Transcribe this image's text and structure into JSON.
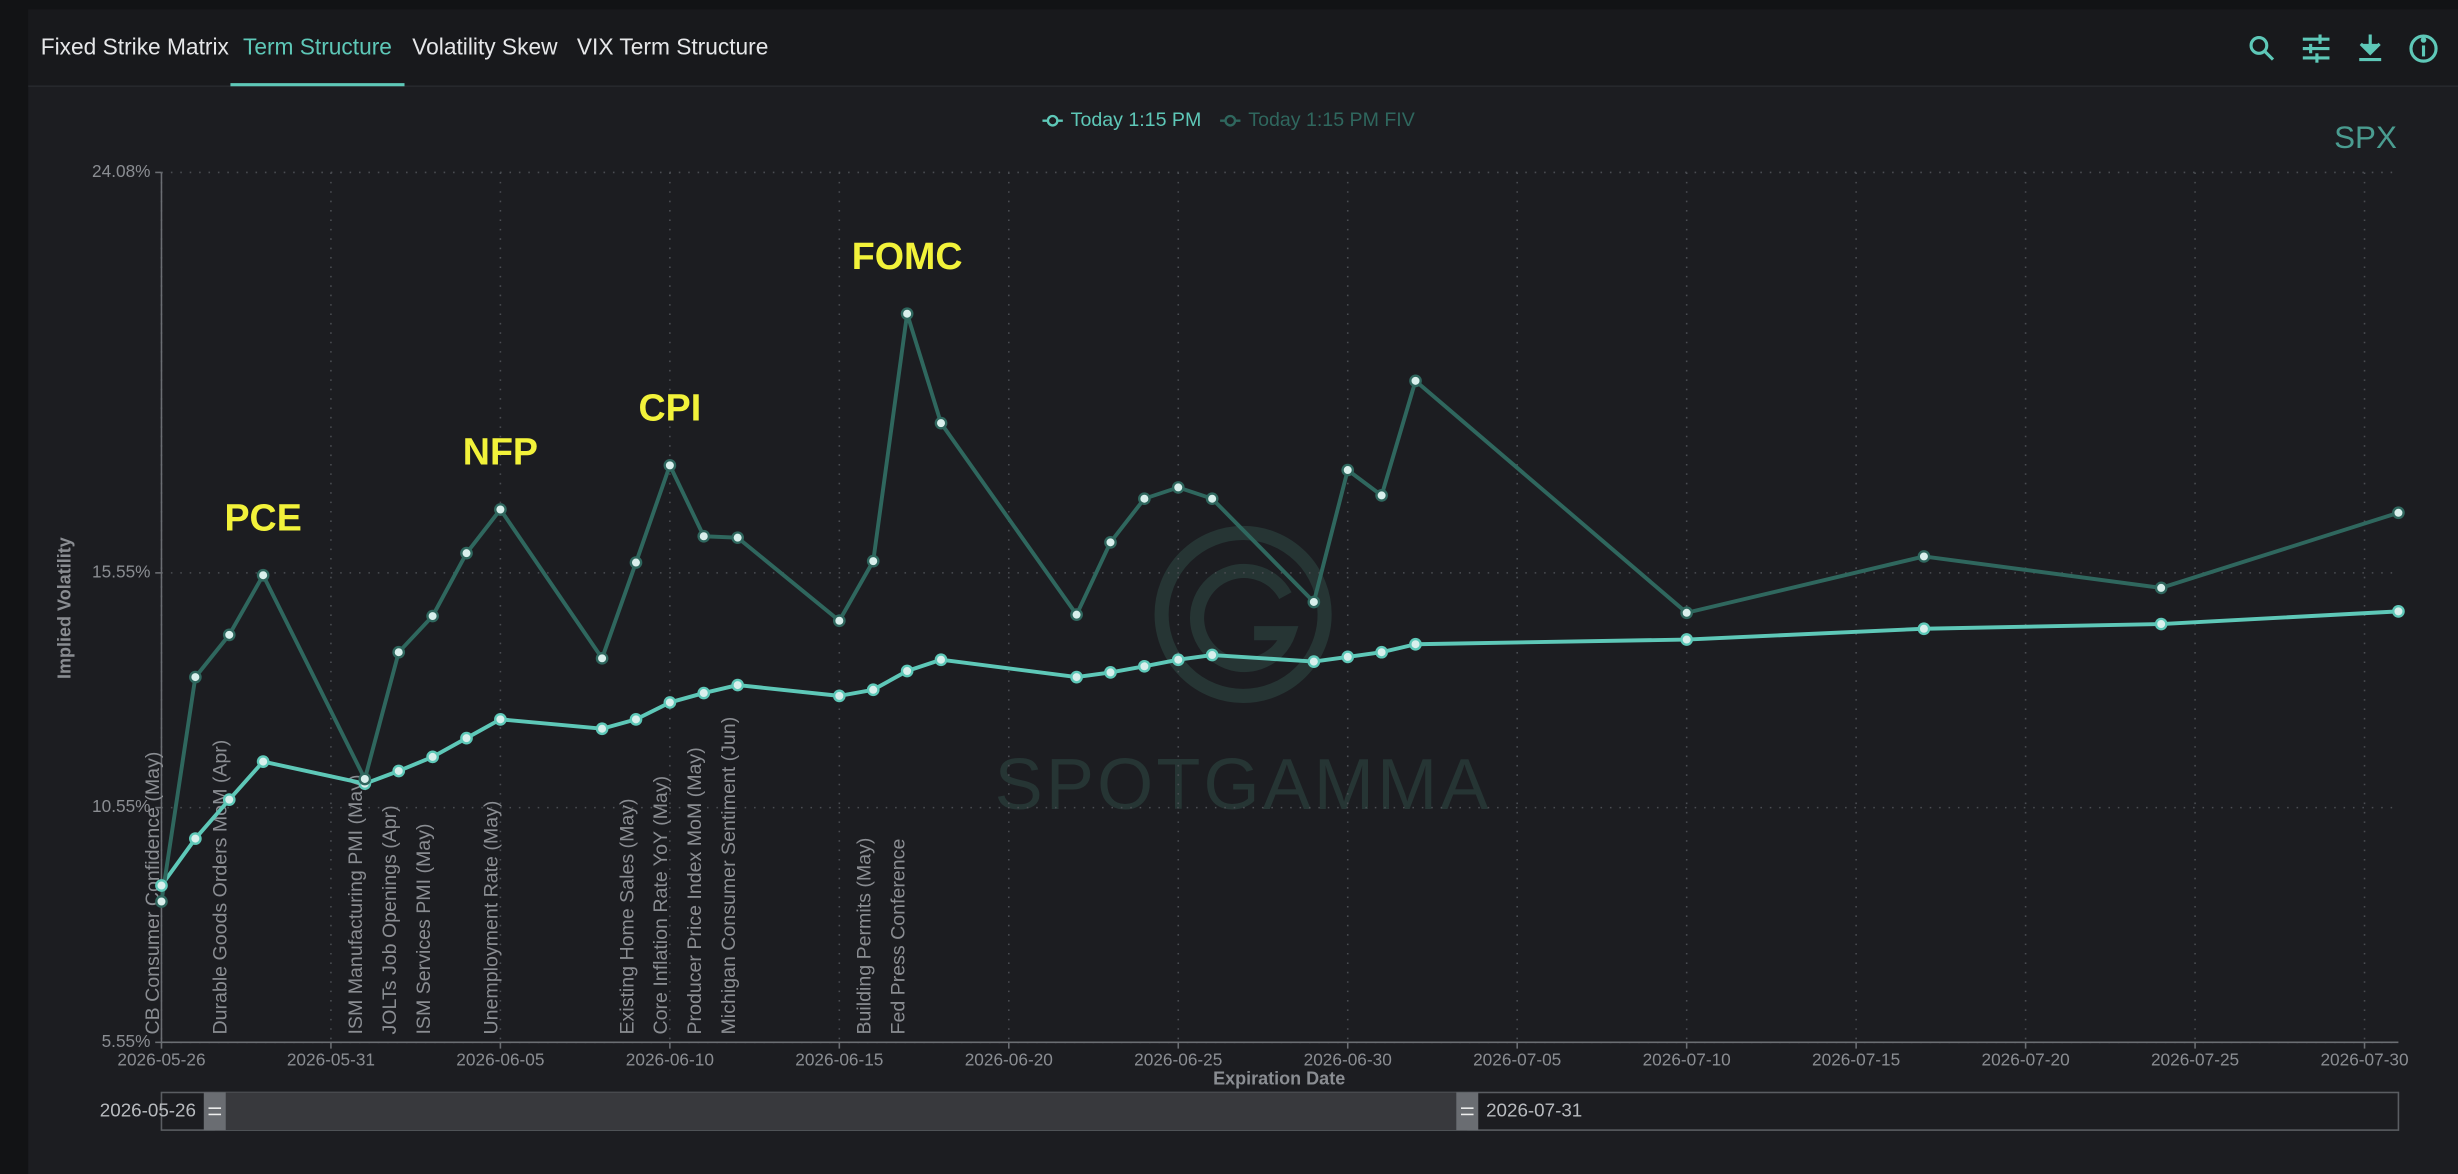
{
  "tabs": [
    "Fixed Strike Matrix",
    "Term Structure",
    "Volatility Skew",
    "VIX Term Structure"
  ],
  "active_tab": 1,
  "chart_data": {
    "type": "line",
    "symbol": "SPX",
    "watermark": "SPOTGAMMA",
    "x_label": "Expiration Date",
    "y_label": "Implied Volatility",
    "x": [
      "2026-05-26",
      "2026-05-27",
      "2026-05-28",
      "2026-05-29",
      "2026-06-01",
      "2026-06-02",
      "2026-06-03",
      "2026-06-04",
      "2026-06-05",
      "2026-06-08",
      "2026-06-09",
      "2026-06-10",
      "2026-06-11",
      "2026-06-12",
      "2026-06-15",
      "2026-06-16",
      "2026-06-17",
      "2026-06-18",
      "2026-06-22",
      "2026-06-23",
      "2026-06-24",
      "2026-06-25",
      "2026-06-26",
      "2026-06-29",
      "2026-06-30",
      "2026-07-01",
      "2026-07-02",
      "2026-07-10",
      "2026-07-17",
      "2026-07-24",
      "2026-07-31"
    ],
    "series": [
      {
        "name": "Today 1:15 PM",
        "color": "#5ec8b8",
        "values": [
          8.89,
          9.89,
          10.72,
          11.53,
          11.06,
          11.33,
          11.63,
          12.03,
          12.43,
          12.23,
          12.43,
          12.79,
          12.99,
          13.16,
          12.93,
          13.06,
          13.46,
          13.7,
          13.33,
          13.43,
          13.56,
          13.7,
          13.8,
          13.66,
          13.76,
          13.86,
          14.03,
          14.13,
          14.36,
          14.46,
          14.73
        ]
      },
      {
        "name": "Today 1:15 PM FIV",
        "color": "#2f675e",
        "values": [
          8.55,
          13.33,
          14.23,
          15.5,
          11.16,
          13.86,
          14.63,
          15.97,
          16.9,
          13.73,
          15.77,
          17.84,
          16.33,
          16.3,
          14.53,
          15.8,
          21.07,
          18.74,
          14.66,
          16.2,
          17.13,
          17.37,
          17.13,
          14.93,
          17.74,
          17.2,
          19.64,
          14.7,
          15.9,
          15.23,
          16.83
        ]
      }
    ],
    "xlim": [
      "2026-05-26",
      "2026-07-31"
    ],
    "xticks": [
      "2026-05-26",
      "2026-05-31",
      "2026-06-05",
      "2026-06-10",
      "2026-06-15",
      "2026-06-20",
      "2026-06-25",
      "2026-06-30",
      "2026-07-05",
      "2026-07-10",
      "2026-07-15",
      "2026-07-20",
      "2026-07-25",
      "2026-07-30"
    ],
    "ylim": [
      5.55,
      24.08
    ],
    "yticks": [
      {
        "value": 5.55,
        "label": "5.55%"
      },
      {
        "value": 10.55,
        "label": "10.55%"
      },
      {
        "value": 15.55,
        "label": "15.55%"
      },
      {
        "value": 24.08,
        "label": "24.08%"
      }
    ],
    "grid": true,
    "annotations": [
      {
        "text": "PCE",
        "x": "2026-05-29"
      },
      {
        "text": "NFP",
        "x": "2026-06-05"
      },
      {
        "text": "CPI",
        "x": "2026-06-10"
      },
      {
        "text": "FOMC",
        "x": "2026-06-17"
      }
    ],
    "events": [
      {
        "text": "CB Consumer Confidence (May)",
        "x": "2026-05-26"
      },
      {
        "text": "Durable Goods Orders MoM (Apr)",
        "x": "2026-05-28"
      },
      {
        "text": "ISM Manufacturing PMI (May)",
        "x": "2026-06-01"
      },
      {
        "text": "JOLTs Job Openings (Apr)",
        "x": "2026-06-02"
      },
      {
        "text": "ISM Services PMI (May)",
        "x": "2026-06-03"
      },
      {
        "text": "Unemployment Rate (May)",
        "x": "2026-06-05"
      },
      {
        "text": "Existing Home Sales (May)",
        "x": "2026-06-09"
      },
      {
        "text": "Core Inflation Rate YoY (May)",
        "x": "2026-06-10"
      },
      {
        "text": "Producer Price Index MoM (May)",
        "x": "2026-06-11"
      },
      {
        "text": "Michigan Consumer Sentiment (Jun)",
        "x": "2026-06-12"
      },
      {
        "text": "Building Permits (May)",
        "x": "2026-06-16"
      },
      {
        "text": "Fed Press Conference",
        "x": "2026-06-17"
      }
    ],
    "range_slider": {
      "start": "2026-05-26",
      "end": "2026-07-31"
    }
  }
}
